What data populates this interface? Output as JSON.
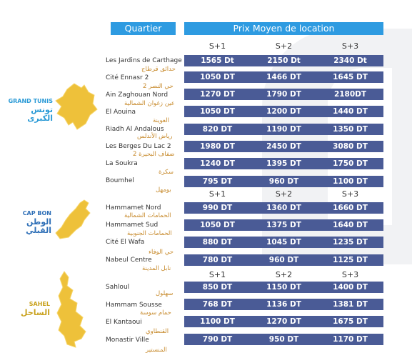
{
  "header": {
    "quartier": "Quartier",
    "prix": "Prix Moyen de location"
  },
  "columns": [
    "S+1",
    "S+2",
    "S+3"
  ],
  "colors": {
    "header_blue": "#2e9be1",
    "row_navy": "#4a5b96",
    "map_yellow": "#eec13a",
    "tunis_label": "#2a9ad6",
    "capbon_label": "#2e6fb7",
    "sahel_label": "#c9a21e",
    "arabic_text": "#c78a2c"
  },
  "regions": [
    {
      "fr": "GRAND TUNIS",
      "ar": "تونس الكبرى",
      "rows": [
        {
          "name": "Les Jardins de Carthage",
          "ar": "حدائق قرطاج",
          "prices": [
            "1565 Dt",
            "2150 Dt",
            "2340 Dt"
          ]
        },
        {
          "name": "Cité Ennasr 2",
          "ar": "حي النصر 2",
          "prices": [
            "1050 DT",
            "1466 DT",
            "1645 DT"
          ]
        },
        {
          "name": "Ain Zaghouan Nord",
          "ar": "عين زغوان الشمالية",
          "prices": [
            "1270 DT",
            "1790 DT",
            "2180DT"
          ]
        },
        {
          "name": "El Aouina",
          "ar": "العوينة",
          "prices": [
            "1050 DT",
            "1200 DT",
            "1440 DT"
          ]
        },
        {
          "name": "Riadh Al Andalous",
          "ar": "رياض الأندلس",
          "prices": [
            "820 DT",
            "1190 DT",
            "1350 DT"
          ]
        },
        {
          "name": "Les Berges Du Lac 2",
          "ar": "ضفاف البحيرة 2",
          "prices": [
            "1980 DT",
            "2450 DT",
            "3080 DT"
          ]
        },
        {
          "name": "La Soukra",
          "ar": "سكرة",
          "prices": [
            "1240 DT",
            "1395 DT",
            "1750 DT"
          ]
        },
        {
          "name": "Boumhel",
          "ar": "بومهل",
          "prices": [
            "795 DT",
            "960 DT",
            "1100 DT"
          ]
        }
      ]
    },
    {
      "fr": "CAP BON",
      "ar": "الوطن القبلي",
      "rows": [
        {
          "name": "Hammamet Nord",
          "ar": "الحمامات الشمالية",
          "prices": [
            "990 DT",
            "1360 DT",
            "1660 DT"
          ]
        },
        {
          "name": "Hammamet Sud",
          "ar": "الحمامات الجنوبية",
          "prices": [
            "1050 DT",
            "1375 DT",
            "1640 DT"
          ]
        },
        {
          "name": "Cité El Wafa",
          "ar": "حي الوفاء",
          "prices": [
            "880 DT",
            "1045 DT",
            "1235 DT"
          ]
        },
        {
          "name": "Nabeul Centre",
          "ar": "نابل المدينة",
          "prices": [
            "780 DT",
            "960 DT",
            "1125 DT"
          ]
        }
      ]
    },
    {
      "fr": "SAHEL",
      "ar": "الساحل",
      "rows": [
        {
          "name": "Sahloul",
          "ar": "سهلول",
          "prices": [
            "850 DT",
            "1150 DT",
            "1400 DT"
          ]
        },
        {
          "name": "Hammam Sousse",
          "ar": "حمام سوسة",
          "prices": [
            "768 DT",
            "1136 DT",
            "1381 DT"
          ]
        },
        {
          "name": "El Kantaoui",
          "ar": "القنطاوي",
          "prices": [
            "1100 DT",
            "1270 DT",
            "1675 DT"
          ]
        },
        {
          "name": "Monastir Ville",
          "ar": "المنستير",
          "prices": [
            "790 DT",
            "950 DT",
            "1170 DT"
          ]
        }
      ]
    }
  ]
}
